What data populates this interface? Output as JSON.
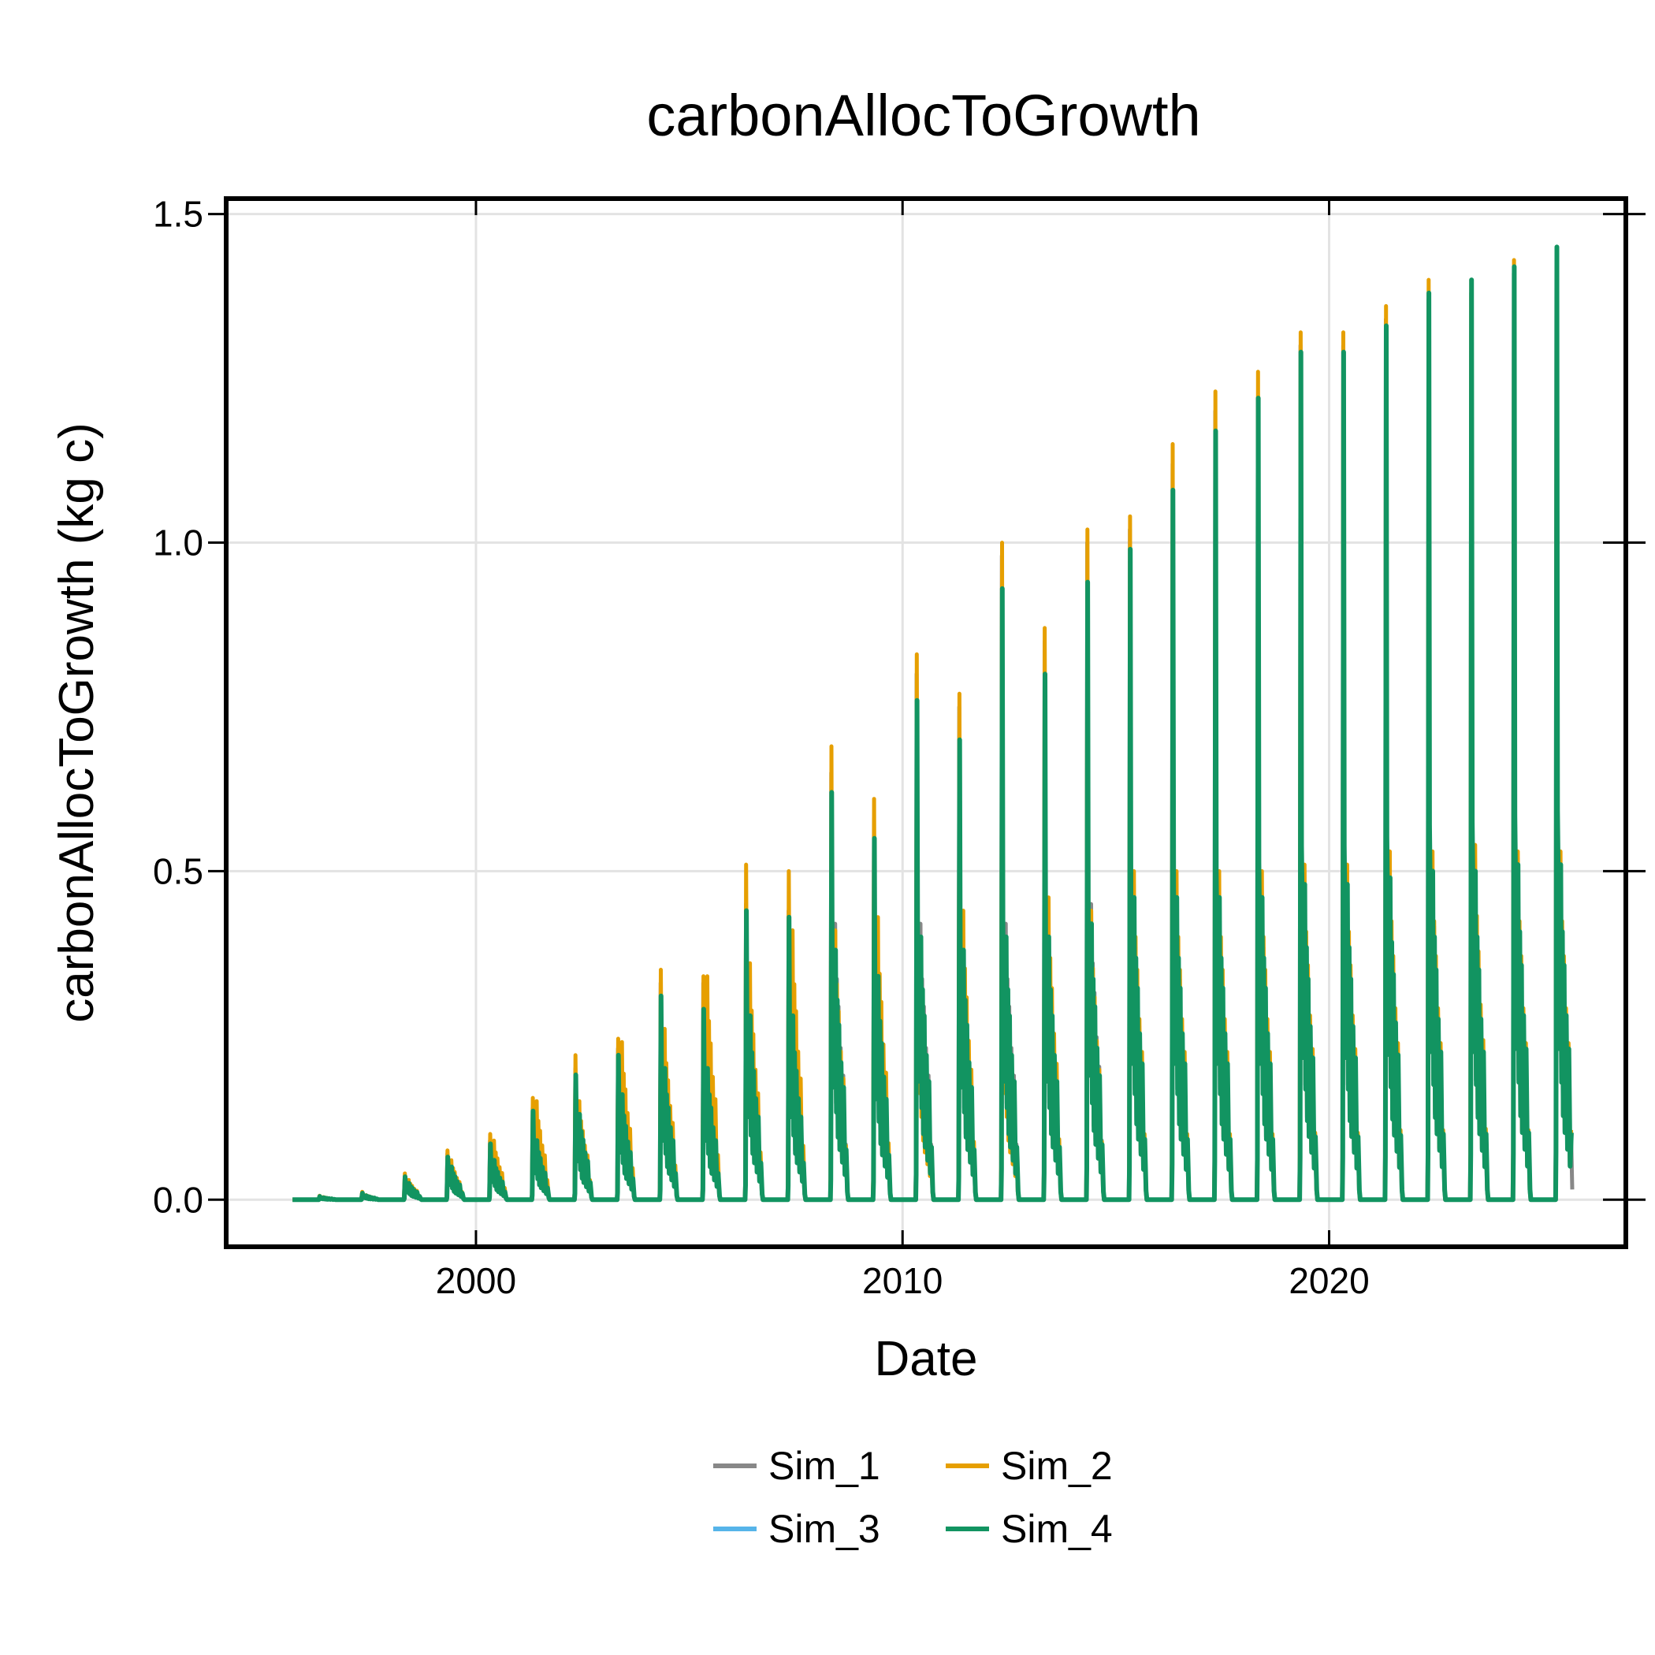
{
  "chart_data": {
    "type": "line",
    "title": "carbonAllocToGrowth",
    "xlabel": "Date",
    "ylabel": "carbonAllocToGrowth (kg c)",
    "xlim": [
      1994.2,
      2026.9
    ],
    "ylim": [
      -0.068,
      1.52
    ],
    "x_ticks": [
      {
        "label": "2000",
        "value": 2000
      },
      {
        "label": "2010",
        "value": 2010
      },
      {
        "label": "2020",
        "value": 2020
      }
    ],
    "y_ticks": [
      {
        "label": "0.0",
        "value": 0.0
      },
      {
        "label": "0.5",
        "value": 0.5
      },
      {
        "label": "1.0",
        "value": 1.0
      },
      {
        "label": "1.5",
        "value": 1.5
      }
    ],
    "grid": true,
    "legend_position": "bottom",
    "x_range_data": [
      1995.7,
      2025.7
    ],
    "series": [
      {
        "name": "Sim_1",
        "color": "#888888",
        "annual_peak": [
          0.005,
          0.01,
          0.035,
          0.07,
          0.09,
          0.14,
          0.2,
          0.23,
          0.33,
          0.33,
          0.45,
          0.44,
          0.65,
          0.58,
          0.8,
          0.75,
          0.98,
          0.85,
          1.0,
          1.02,
          1.12,
          1.2,
          1.22,
          1.3,
          1.3,
          1.34,
          1.37,
          1.38,
          1.41,
          1.44
        ],
        "second_peak": [
          0.003,
          0.006,
          0.025,
          0.05,
          0.06,
          0.1,
          0.14,
          0.17,
          0.22,
          0.22,
          0.3,
          0.3,
          0.42,
          0.35,
          0.42,
          0.4,
          0.42,
          0.42,
          0.45,
          0.48,
          0.48,
          0.48,
          0.48,
          0.5,
          0.5,
          0.5,
          0.52,
          0.52,
          0.52,
          0.52
        ]
      },
      {
        "name": "Sim_2",
        "color": "#e69f00",
        "annual_peak": [
          0.006,
          0.012,
          0.04,
          0.075,
          0.1,
          0.155,
          0.22,
          0.245,
          0.35,
          0.34,
          0.51,
          0.5,
          0.69,
          0.61,
          0.83,
          0.77,
          1.0,
          0.87,
          1.02,
          1.04,
          1.15,
          1.23,
          1.26,
          1.32,
          1.32,
          1.36,
          1.4,
          1.4,
          1.43,
          1.45
        ],
        "second_peak": [
          0.004,
          0.007,
          0.03,
          0.06,
          0.09,
          0.15,
          0.15,
          0.24,
          0.26,
          0.34,
          0.36,
          0.41,
          0.41,
          0.43,
          0.36,
          0.44,
          0.36,
          0.46,
          0.44,
          0.5,
          0.5,
          0.5,
          0.5,
          0.51,
          0.51,
          0.53,
          0.53,
          0.54,
          0.53,
          0.53
        ]
      },
      {
        "name": "Sim_3",
        "color": "#56b4e9",
        "annual_peak": [
          0.005,
          0.01,
          0.035,
          0.065,
          0.085,
          0.135,
          0.19,
          0.22,
          0.31,
          0.3,
          0.44,
          0.43,
          0.62,
          0.55,
          0.76,
          0.7,
          0.93,
          0.8,
          0.94,
          0.99,
          1.08,
          1.17,
          1.22,
          1.29,
          1.29,
          1.33,
          1.37,
          1.39,
          1.41,
          1.44
        ],
        "second_peak": [
          0.003,
          0.006,
          0.025,
          0.05,
          0.06,
          0.09,
          0.13,
          0.16,
          0.2,
          0.2,
          0.28,
          0.28,
          0.38,
          0.34,
          0.4,
          0.38,
          0.4,
          0.4,
          0.42,
          0.46,
          0.46,
          0.46,
          0.46,
          0.48,
          0.48,
          0.49,
          0.5,
          0.5,
          0.51,
          0.51
        ]
      },
      {
        "name": "Sim_4",
        "color": "#129461",
        "annual_peak": [
          0.005,
          0.01,
          0.035,
          0.065,
          0.085,
          0.135,
          0.19,
          0.22,
          0.31,
          0.29,
          0.44,
          0.43,
          0.62,
          0.55,
          0.76,
          0.7,
          0.93,
          0.8,
          0.94,
          0.99,
          1.08,
          1.17,
          1.22,
          1.29,
          1.29,
          1.33,
          1.38,
          1.4,
          1.42,
          1.45
        ],
        "second_peak": [
          0.003,
          0.006,
          0.025,
          0.05,
          0.06,
          0.09,
          0.13,
          0.16,
          0.2,
          0.2,
          0.28,
          0.28,
          0.38,
          0.34,
          0.4,
          0.38,
          0.4,
          0.4,
          0.42,
          0.46,
          0.46,
          0.46,
          0.46,
          0.48,
          0.48,
          0.49,
          0.5,
          0.5,
          0.51,
          0.51
        ]
      }
    ]
  }
}
